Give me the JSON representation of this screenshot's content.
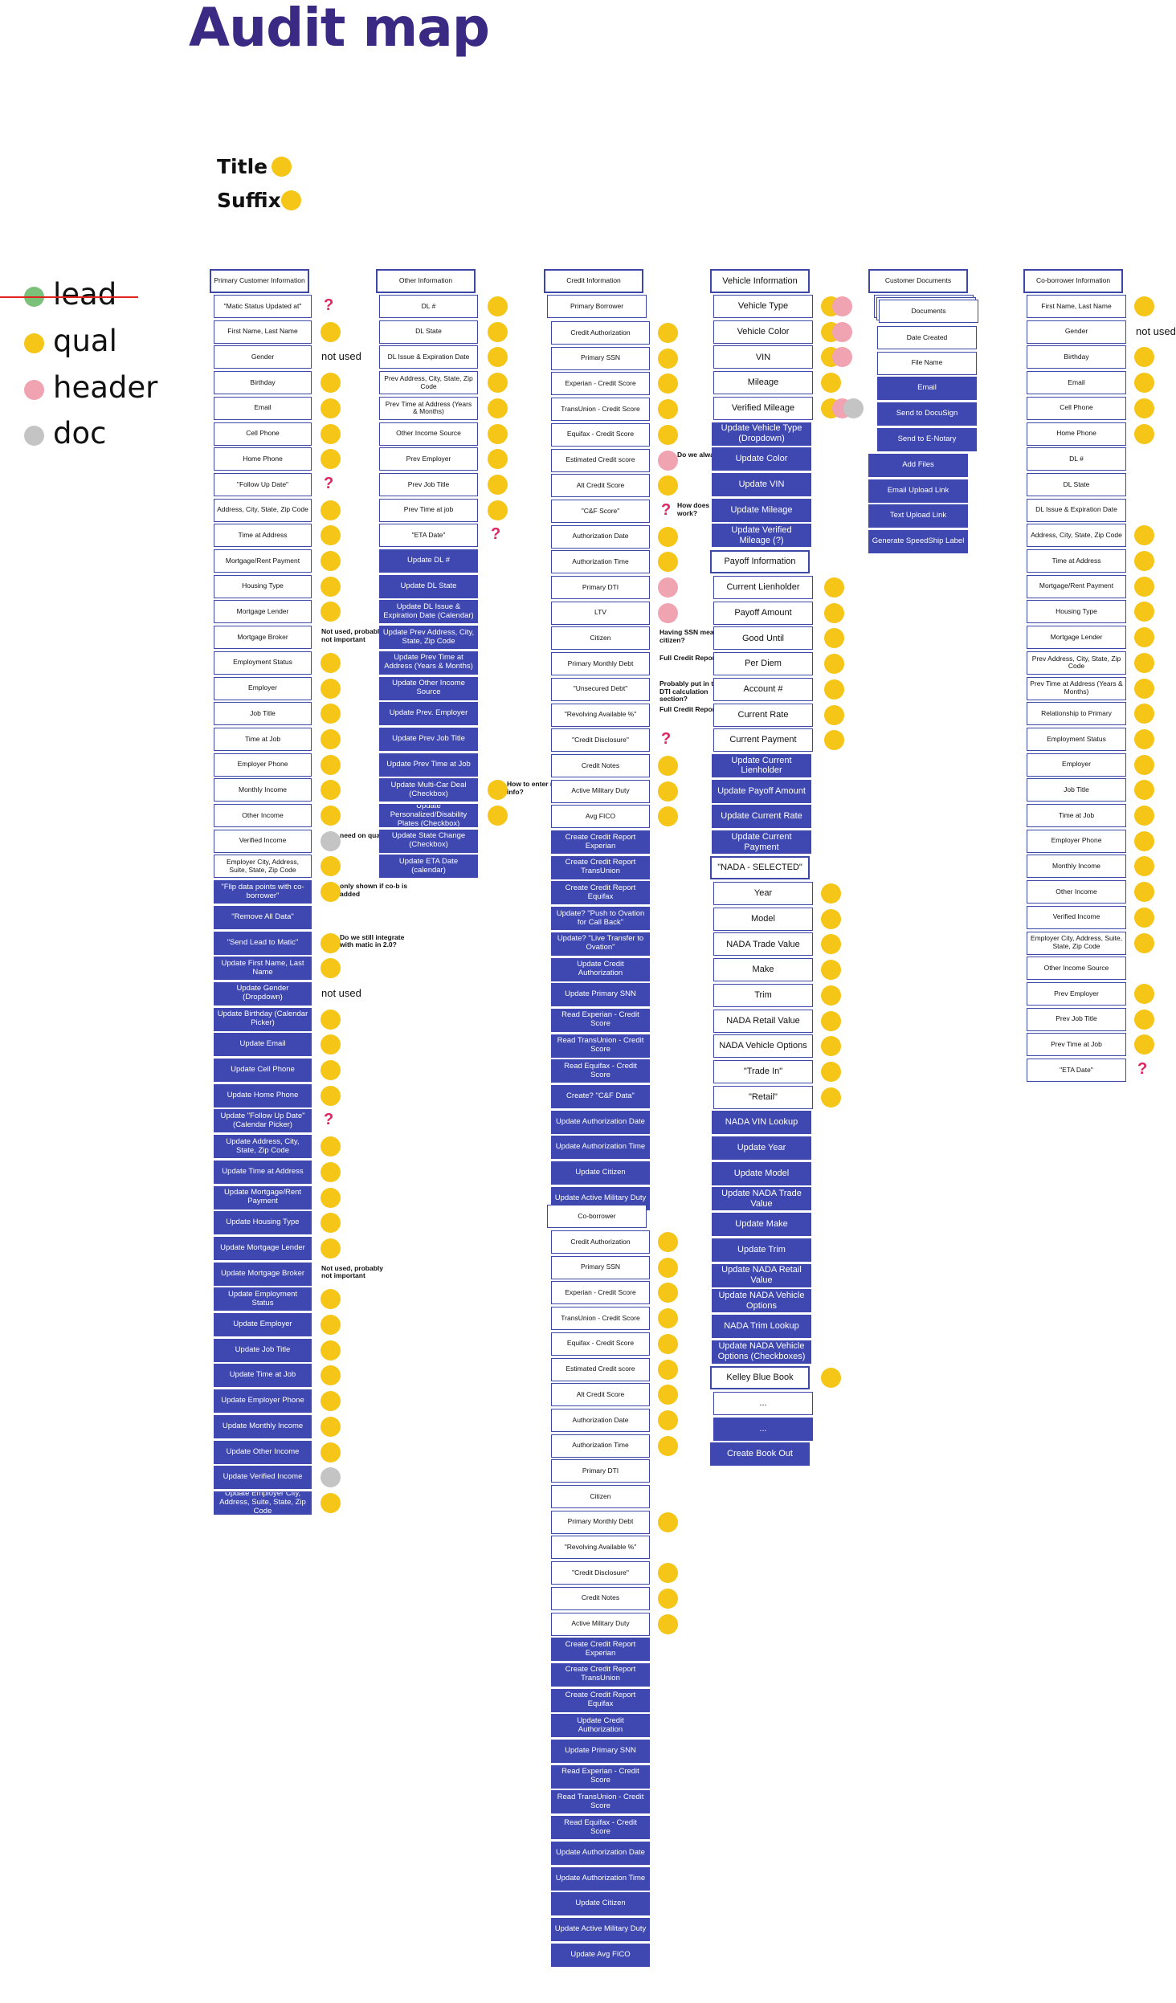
{
  "title": "Audit map",
  "key_samples": {
    "title": "Title",
    "suffix": "Suffix"
  },
  "legend": [
    {
      "label": "lead",
      "color": "#7cc17a",
      "struck": true
    },
    {
      "label": "qual",
      "color": "#f5c518"
    },
    {
      "label": "header",
      "color": "#f0a3b0"
    },
    {
      "label": "doc",
      "color": "#c4c4c4"
    }
  ],
  "colors": {
    "title": "#3b2a84",
    "box_border": "#3d47a8",
    "box_fill_dark": "#3f48b1",
    "question": "#e0245e",
    "strike": "#e0241b"
  },
  "columns": {
    "primary": {
      "header": "Primary Customer Information",
      "items": [
        {
          "t": "\"Matic Status Updated at\"",
          "m": "q"
        },
        {
          "t": "First Name, Last Name",
          "m": "y"
        },
        {
          "t": "Gender",
          "n": "not used"
        },
        {
          "t": "Birthday",
          "m": "y"
        },
        {
          "t": "Email",
          "m": "y"
        },
        {
          "t": "Cell Phone",
          "m": "y"
        },
        {
          "t": "Home Phone",
          "m": "y"
        },
        {
          "t": "\"Follow Up Date\"",
          "m": "q"
        },
        {
          "t": "Address, City, State, Zip Code",
          "m": "y"
        },
        {
          "t": "Time at Address",
          "m": "y"
        },
        {
          "t": "Mortgage/Rent Payment",
          "m": "y"
        },
        {
          "t": "Housing Type",
          "m": "y"
        },
        {
          "t": "Mortgage Lender",
          "m": "y"
        },
        {
          "t": "Mortgage Broker",
          "n": "Not used, probably not important"
        },
        {
          "t": "Employment Status",
          "m": "y"
        },
        {
          "t": "Employer",
          "m": "y"
        },
        {
          "t": "Job Title",
          "m": "y"
        },
        {
          "t": "Time at Job",
          "m": "y"
        },
        {
          "t": "Employer Phone",
          "m": "y"
        },
        {
          "t": "Monthly Income",
          "m": "y"
        },
        {
          "t": "Other Income",
          "m": "y"
        },
        {
          "t": "Verified Income",
          "m": "g",
          "n": "need on qual page?"
        },
        {
          "t": "Employer City, Address, Suite, State, Zip Code",
          "m": "y"
        },
        {
          "t": "\"Flip data points with co-borrower\"",
          "d": 1,
          "m": "y",
          "n": "only shown if co-b is added"
        },
        {
          "t": "\"Remove All Data\"",
          "d": 1
        },
        {
          "t": "\"Send Lead to Matic\"",
          "d": 1,
          "m": "y",
          "n": "Do we still integrate with matic in 2.0?"
        },
        {
          "t": "Update First Name, Last Name",
          "d": 1,
          "m": "y"
        },
        {
          "t": "Update Gender (Dropdown)",
          "d": 1,
          "n": "not used"
        },
        {
          "t": "Update Birthday (Calendar Picker)",
          "d": 1,
          "m": "y"
        },
        {
          "t": "Update Email",
          "d": 1,
          "m": "y"
        },
        {
          "t": "Update Cell Phone",
          "d": 1,
          "m": "y"
        },
        {
          "t": "Update Home Phone",
          "d": 1,
          "m": "y"
        },
        {
          "t": "Update \"Follow Up Date\" (Calendar Picker)",
          "d": 1,
          "m": "q"
        },
        {
          "t": "Update Address, City, State, Zip Code",
          "d": 1,
          "m": "y"
        },
        {
          "t": "Update Time at Address",
          "d": 1,
          "m": "y"
        },
        {
          "t": "Update Mortgage/Rent Payment",
          "d": 1,
          "m": "y"
        },
        {
          "t": "Update Housing Type",
          "d": 1,
          "m": "y"
        },
        {
          "t": "Update Mortgage Lender",
          "d": 1,
          "m": "y"
        },
        {
          "t": "Update Mortgage Broker",
          "d": 1,
          "n": "Not used, probably not important"
        },
        {
          "t": "Update Employment Status",
          "d": 1,
          "m": "y"
        },
        {
          "t": "Update Employer",
          "d": 1,
          "m": "y"
        },
        {
          "t": "Update Job Title",
          "d": 1,
          "m": "y"
        },
        {
          "t": "Update Time at Job",
          "d": 1,
          "m": "y"
        },
        {
          "t": "Update Employer Phone",
          "d": 1,
          "m": "y"
        },
        {
          "t": "Update Monthly Income",
          "d": 1,
          "m": "y"
        },
        {
          "t": "Update Other Income",
          "d": 1,
          "m": "y"
        },
        {
          "t": "Update Verified Income",
          "d": 1,
          "m": "g"
        },
        {
          "t": "Update Employer City, Address, Suite, State, Zip Code",
          "d": 1,
          "m": "y"
        }
      ]
    },
    "other": {
      "header": "Other Information",
      "items": [
        {
          "t": "DL #",
          "m": "y"
        },
        {
          "t": "DL State",
          "m": "y"
        },
        {
          "t": "DL Issue & Expiration Date",
          "m": "y"
        },
        {
          "t": "Prev Address, City, State, Zip Code",
          "m": "y"
        },
        {
          "t": "Prev Time at Address (Years & Months)",
          "m": "y"
        },
        {
          "t": "Other Income Source",
          "m": "y"
        },
        {
          "t": "Prev Employer",
          "m": "y"
        },
        {
          "t": "Prev Job Title",
          "m": "y"
        },
        {
          "t": "Prev Time at job",
          "m": "y"
        },
        {
          "t": "\"ETA Date\"",
          "m": "q"
        },
        {
          "t": "Update DL #",
          "d": 1
        },
        {
          "t": "Update DL State",
          "d": 1
        },
        {
          "t": "Update DL Issue & Expiration Date (Calendar)",
          "d": 1
        },
        {
          "t": "Update Prev Address, City, State, Zip Code",
          "d": 1
        },
        {
          "t": "Update Prev Time at Address (Years & Months)",
          "d": 1
        },
        {
          "t": "Update Other Income Source",
          "d": 1
        },
        {
          "t": "Update Prev. Employer",
          "d": 1
        },
        {
          "t": "Update Prev Job Title",
          "d": 1
        },
        {
          "t": "Update Prev Time at Job",
          "d": 1
        },
        {
          "t": "Update Multi-Car Deal (Checkbox)",
          "d": 1,
          "m": "y",
          "n": "How to enter multi-car info?"
        },
        {
          "t": "Update Personalized/Disability Plates (Checkbox)",
          "d": 1,
          "m": "y"
        },
        {
          "t": "Update State Change (Checkbox)",
          "d": 1
        },
        {
          "t": "Update ETA Date (calendar)",
          "d": 1
        }
      ]
    },
    "credit": {
      "header": "Credit Information",
      "sub1": "Primary Borrower",
      "items1": [
        {
          "t": "Credit Authorization",
          "m": "y"
        },
        {
          "t": "Primary SSN",
          "m": "y"
        },
        {
          "t": "Experian - Credit Score",
          "m": "y"
        },
        {
          "t": "TransUnion - Credit Score",
          "m": "y"
        },
        {
          "t": "Equifax - Credit Score",
          "m": "y"
        },
        {
          "t": "Estimated Credit score",
          "m": "p",
          "n": "Do we alway show?"
        },
        {
          "t": "Alt Credit Score",
          "m": "y"
        },
        {
          "t": "\"C&F Score\"",
          "m": "q",
          "n": "How does integration work?"
        },
        {
          "t": "Authorization Date",
          "m": "y"
        },
        {
          "t": "Authorization Time",
          "m": "y"
        },
        {
          "t": "Primary DTI",
          "m": "p"
        },
        {
          "t": "LTV",
          "m": "p"
        },
        {
          "t": "Citizen",
          "n": "Having SSN means citizen?"
        },
        {
          "t": "Primary Monthly Debt",
          "n": "Full Credit Report"
        },
        {
          "t": "\"Unsecured Debt\"",
          "n": "Probably put in the DTI calculation section?"
        },
        {
          "t": "\"Revolving Available %\"",
          "n": "Full Credit Report"
        },
        {
          "t": "\"Credit Disclosure\"",
          "m": "q"
        },
        {
          "t": "Credit Notes",
          "m": "y"
        },
        {
          "t": "Active Military Duty",
          "m": "y"
        },
        {
          "t": "Avg FICO",
          "m": "y"
        },
        {
          "t": "Create Credit Report Experian",
          "d": 1
        },
        {
          "t": "Create Credit Report TransUnion",
          "d": 1
        },
        {
          "t": "Create Credit Report Equifax",
          "d": 1
        },
        {
          "t": "Update? \"Push to Ovation for Call Back\"",
          "d": 1
        },
        {
          "t": "Update? \"Live Transfer to Ovation\"",
          "d": 1
        },
        {
          "t": "Update Credit Authorization",
          "d": 1
        },
        {
          "t": "Update Primary SNN",
          "d": 1
        },
        {
          "t": "Read Experian - Credit Score",
          "d": 1
        },
        {
          "t": "Read TransUnion - Credit Score",
          "d": 1
        },
        {
          "t": "Read Equifax - Credit Score",
          "d": 1
        },
        {
          "t": "Create? \"C&F Data\"",
          "d": 1
        },
        {
          "t": "Update Authorization Date",
          "d": 1
        },
        {
          "t": "Update Authorization Time",
          "d": 1
        },
        {
          "t": "Update Citizen",
          "d": 1
        },
        {
          "t": "Update Active Military Duty",
          "d": 1
        }
      ],
      "sub2": "Co-borrower",
      "items2": [
        {
          "t": "Credit Authorization",
          "m": "y"
        },
        {
          "t": "Primary SSN",
          "m": "y"
        },
        {
          "t": "Experian - Credit Score",
          "m": "y"
        },
        {
          "t": "TransUnion - Credit Score",
          "m": "y"
        },
        {
          "t": "Equifax - Credit Score",
          "m": "y"
        },
        {
          "t": "Estimated Credit score",
          "m": "y"
        },
        {
          "t": "Alt Credit Score",
          "m": "y"
        },
        {
          "t": "Authorization Date",
          "m": "y"
        },
        {
          "t": "Authorization Time",
          "m": "y"
        },
        {
          "t": "Primary DTI"
        },
        {
          "t": "Citizen"
        },
        {
          "t": "Primary Monthly Debt",
          "m": "y"
        },
        {
          "t": "\"Revolving Available %\""
        },
        {
          "t": "\"Credit Disclosure\"",
          "m": "y"
        },
        {
          "t": "Credit Notes",
          "m": "y"
        },
        {
          "t": "Active Military Duty",
          "m": "y"
        },
        {
          "t": "Create Credit Report Experian",
          "d": 1
        },
        {
          "t": "Create Credit Report TransUnion",
          "d": 1
        },
        {
          "t": "Create Credit Report Equifax",
          "d": 1
        },
        {
          "t": "Update Credit Authorization",
          "d": 1
        },
        {
          "t": "Update Primary SNN",
          "d": 1
        },
        {
          "t": "Read Experian - Credit Score",
          "d": 1
        },
        {
          "t": "Read TransUnion - Credit Score",
          "d": 1
        },
        {
          "t": "Read Equifax - Credit Score",
          "d": 1
        },
        {
          "t": "Update Authorization Date",
          "d": 1
        },
        {
          "t": "Update Authorization Time",
          "d": 1
        },
        {
          "t": "Update Citizen",
          "d": 1
        },
        {
          "t": "Update Active Military Duty",
          "d": 1
        },
        {
          "t": "Update Avg FICO",
          "d": 1
        }
      ]
    },
    "vehicle": {
      "header": "Vehicle Information",
      "items": [
        {
          "t": "Vehicle Type",
          "m": "yp"
        },
        {
          "t": "Vehicle Color",
          "m": "yp"
        },
        {
          "t": "VIN",
          "m": "yp"
        },
        {
          "t": "Mileage",
          "m": "y"
        },
        {
          "t": "Verified Mileage",
          "m": "ypg"
        },
        {
          "t": "Update Vehicle Type (Dropdown)",
          "d": 1
        },
        {
          "t": "Update Color",
          "d": 1
        },
        {
          "t": "Update VIN",
          "d": 1
        },
        {
          "t": "Update Mileage",
          "d": 1
        },
        {
          "t": "Update Verified Mileage (?)",
          "d": 1
        }
      ],
      "payoff_header": "Payoff Information",
      "payoff": [
        {
          "t": "Current Lienholder",
          "m": "y"
        },
        {
          "t": "Payoff Amount",
          "m": "y"
        },
        {
          "t": "Good Until",
          "m": "y"
        },
        {
          "t": "Per Diem",
          "m": "y"
        },
        {
          "t": "Account #",
          "m": "y"
        },
        {
          "t": "Current Rate",
          "m": "y"
        },
        {
          "t": "Current Payment",
          "m": "y"
        },
        {
          "t": "Update Current Lienholder",
          "d": 1
        },
        {
          "t": "Update Payoff Amount",
          "d": 1
        },
        {
          "t": "Update Current Rate",
          "d": 1
        },
        {
          "t": "Update Current Payment",
          "d": 1
        }
      ],
      "nada_header": "\"NADA - SELECTED\"",
      "nada": [
        {
          "t": "Year",
          "m": "y"
        },
        {
          "t": "Model",
          "m": "y"
        },
        {
          "t": "NADA Trade Value",
          "m": "y"
        },
        {
          "t": "Make",
          "m": "y"
        },
        {
          "t": "Trim",
          "m": "y"
        },
        {
          "t": "NADA Retail Value",
          "m": "y"
        },
        {
          "t": "NADA Vehicle Options",
          "m": "y"
        },
        {
          "t": "\"Trade In\"",
          "m": "y"
        },
        {
          "t": "\"Retail\"",
          "m": "y"
        },
        {
          "t": "NADA VIN Lookup",
          "d": 1
        },
        {
          "t": "Update Year",
          "d": 1
        },
        {
          "t": "Update Model",
          "d": 1
        },
        {
          "t": "Update NADA Trade Value",
          "d": 1
        },
        {
          "t": "Update Make",
          "d": 1
        },
        {
          "t": "Update Trim",
          "d": 1
        },
        {
          "t": "Update NADA Retail Value",
          "d": 1
        },
        {
          "t": "Update NADA Vehicle Options",
          "d": 1
        },
        {
          "t": "NADA Trim Lookup",
          "d": 1
        },
        {
          "t": "Update NADA Vehicle Options (Checkboxes)",
          "d": 1
        }
      ],
      "kbb_header": "Kelley Blue Book",
      "kbb": [
        {
          "t": "...",
          "m": ""
        },
        {
          "t": "...",
          "d": 1
        }
      ],
      "book_out": "Create Book Out"
    },
    "documents": {
      "header": "Customer Documents",
      "stack": "Documents",
      "items": [
        {
          "t": "Date Created"
        },
        {
          "t": "File Name"
        },
        {
          "t": "Email",
          "d": 1
        },
        {
          "t": "Send to DocuSign",
          "d": 1
        },
        {
          "t": "Send to E-Notary",
          "d": 1
        }
      ],
      "actions": [
        "Add Files",
        "Email Upload Link",
        "Text Upload Link",
        "Generate SpeedShip Label"
      ]
    },
    "coborrower": {
      "header": "Co-borrower Information",
      "items": [
        {
          "t": "First Name, Last Name",
          "m": "y"
        },
        {
          "t": "Gender",
          "n": "not used"
        },
        {
          "t": "Birthday",
          "m": "y"
        },
        {
          "t": "Email",
          "m": "y"
        },
        {
          "t": "Cell Phone",
          "m": "y"
        },
        {
          "t": "Home Phone",
          "m": "y"
        },
        {
          "t": "DL #"
        },
        {
          "t": "DL State"
        },
        {
          "t": "DL Issue & Expiration Date"
        },
        {
          "t": "Address, City, State, Zip Code",
          "m": "y"
        },
        {
          "t": "Time at Address",
          "m": "y"
        },
        {
          "t": "Mortgage/Rent Payment",
          "m": "y"
        },
        {
          "t": "Housing Type",
          "m": "y"
        },
        {
          "t": "Mortgage Lender",
          "m": "y"
        },
        {
          "t": "Prev Address, City, State, Zip Code",
          "m": "y"
        },
        {
          "t": "Prev Time at Address (Years & Months)",
          "m": "y"
        },
        {
          "t": "Relationship to Primary",
          "m": "y"
        },
        {
          "t": "Employment Status",
          "m": "y"
        },
        {
          "t": "Employer",
          "m": "y"
        },
        {
          "t": "Job Title",
          "m": "y"
        },
        {
          "t": "Time at Job",
          "m": "y"
        },
        {
          "t": "Employer Phone",
          "m": "y"
        },
        {
          "t": "Monthly Income",
          "m": "y"
        },
        {
          "t": "Other Income",
          "m": "y"
        },
        {
          "t": "Verified Income",
          "m": "y"
        },
        {
          "t": "Employer City, Address, Suite, State, Zip Code",
          "m": "y"
        },
        {
          "t": "Other Income Source"
        },
        {
          "t": "Prev Employer",
          "m": "y"
        },
        {
          "t": "Prev Job Title",
          "m": "y"
        },
        {
          "t": "Prev Time at Job",
          "m": "y"
        },
        {
          "t": "\"ETA Date\"",
          "m": "q"
        }
      ]
    }
  }
}
